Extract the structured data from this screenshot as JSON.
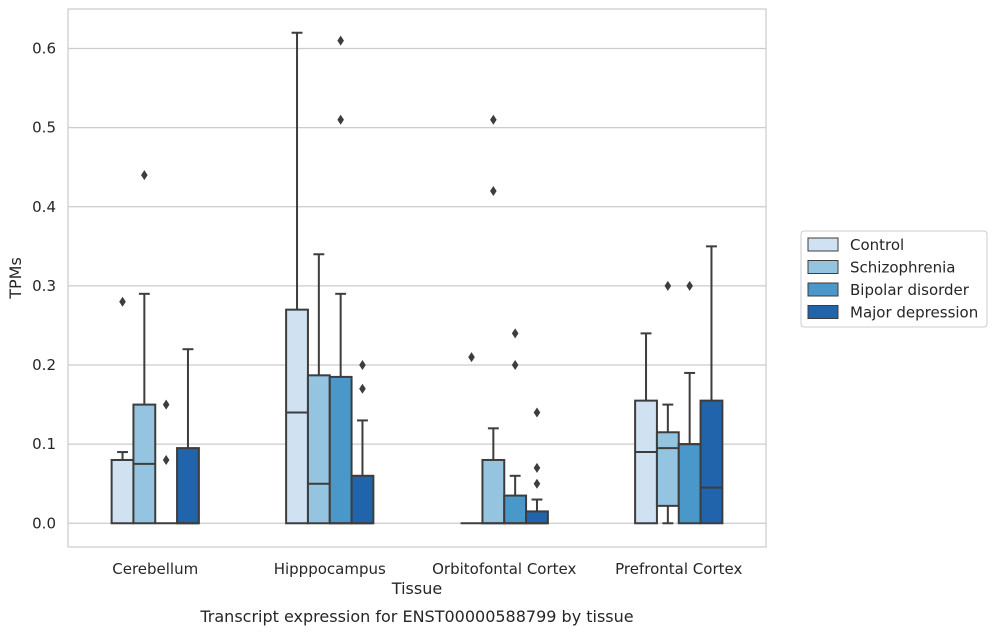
{
  "caption": "Transcript expression for ENST00000588799 by tissue",
  "chart_data": {
    "type": "box",
    "xlabel": "Tissue",
    "ylabel": "TPMs",
    "ylim": [
      -0.03,
      0.65
    ],
    "yticks": [
      0.0,
      0.1,
      0.2,
      0.3,
      0.4,
      0.5,
      0.6
    ],
    "ytick_labels": [
      "0.0",
      "0.1",
      "0.2",
      "0.3",
      "0.4",
      "0.5",
      "0.6"
    ],
    "categories": [
      "Cerebellum",
      "Hipppocampus",
      "Orbitofontal Cortex",
      "Prefrontal Cortex"
    ],
    "grid": "horizontal",
    "legend_position": "right",
    "series": [
      {
        "name": "Control",
        "color": "#d0e1f2",
        "boxes": [
          {
            "whislo": 0.0,
            "q1": 0.0,
            "med": 0.08,
            "q3": 0.08,
            "whishi": 0.09,
            "fliers": [
              0.28
            ]
          },
          {
            "whislo": 0.0,
            "q1": 0.0,
            "med": 0.14,
            "q3": 0.27,
            "whishi": 0.62,
            "fliers": []
          },
          {
            "whislo": 0.0,
            "q1": 0.0,
            "med": 0.0,
            "q3": 0.0,
            "whishi": 0.0,
            "fliers": [
              0.21
            ]
          },
          {
            "whislo": 0.0,
            "q1": 0.0,
            "med": 0.09,
            "q3": 0.155,
            "whishi": 0.24,
            "fliers": []
          }
        ]
      },
      {
        "name": "Schizophrenia",
        "color": "#94c4df",
        "boxes": [
          {
            "whislo": 0.0,
            "q1": 0.0,
            "med": 0.075,
            "q3": 0.15,
            "whishi": 0.29,
            "fliers": [
              0.44
            ]
          },
          {
            "whislo": 0.0,
            "q1": 0.0,
            "med": 0.05,
            "q3": 0.187,
            "whishi": 0.34,
            "fliers": []
          },
          {
            "whislo": 0.0,
            "q1": 0.0,
            "med": 0.0,
            "q3": 0.08,
            "whishi": 0.12,
            "fliers": [
              0.42,
              0.51
            ]
          },
          {
            "whislo": 0.0,
            "q1": 0.022,
            "med": 0.095,
            "q3": 0.115,
            "whishi": 0.15,
            "fliers": [
              0.3
            ]
          }
        ]
      },
      {
        "name": "Bipolar disorder",
        "color": "#4a98c9",
        "boxes": [
          {
            "whislo": 0.0,
            "q1": 0.0,
            "med": 0.0,
            "q3": 0.0,
            "whishi": 0.0,
            "fliers": [
              0.08,
              0.15
            ]
          },
          {
            "whislo": 0.0,
            "q1": 0.0,
            "med": 0.0,
            "q3": 0.185,
            "whishi": 0.29,
            "fliers": [
              0.51,
              0.61
            ]
          },
          {
            "whislo": 0.0,
            "q1": 0.0,
            "med": 0.0,
            "q3": 0.035,
            "whishi": 0.06,
            "fliers": [
              0.2,
              0.24
            ]
          },
          {
            "whislo": 0.0,
            "q1": 0.0,
            "med": 0.1,
            "q3": 0.1,
            "whishi": 0.19,
            "fliers": [
              0.3
            ]
          }
        ]
      },
      {
        "name": "Major depression",
        "color": "#2164ab",
        "boxes": [
          {
            "whislo": 0.0,
            "q1": 0.0,
            "med": 0.0,
            "q3": 0.095,
            "whishi": 0.22,
            "fliers": []
          },
          {
            "whislo": 0.0,
            "q1": 0.0,
            "med": 0.0,
            "q3": 0.06,
            "whishi": 0.13,
            "fliers": [
              0.17,
              0.2
            ]
          },
          {
            "whislo": 0.0,
            "q1": 0.0,
            "med": 0.0,
            "q3": 0.015,
            "whishi": 0.03,
            "fliers": [
              0.05,
              0.07,
              0.14
            ]
          },
          {
            "whislo": 0.0,
            "q1": 0.0,
            "med": 0.045,
            "q3": 0.155,
            "whishi": 0.35,
            "fliers": []
          }
        ]
      }
    ]
  }
}
